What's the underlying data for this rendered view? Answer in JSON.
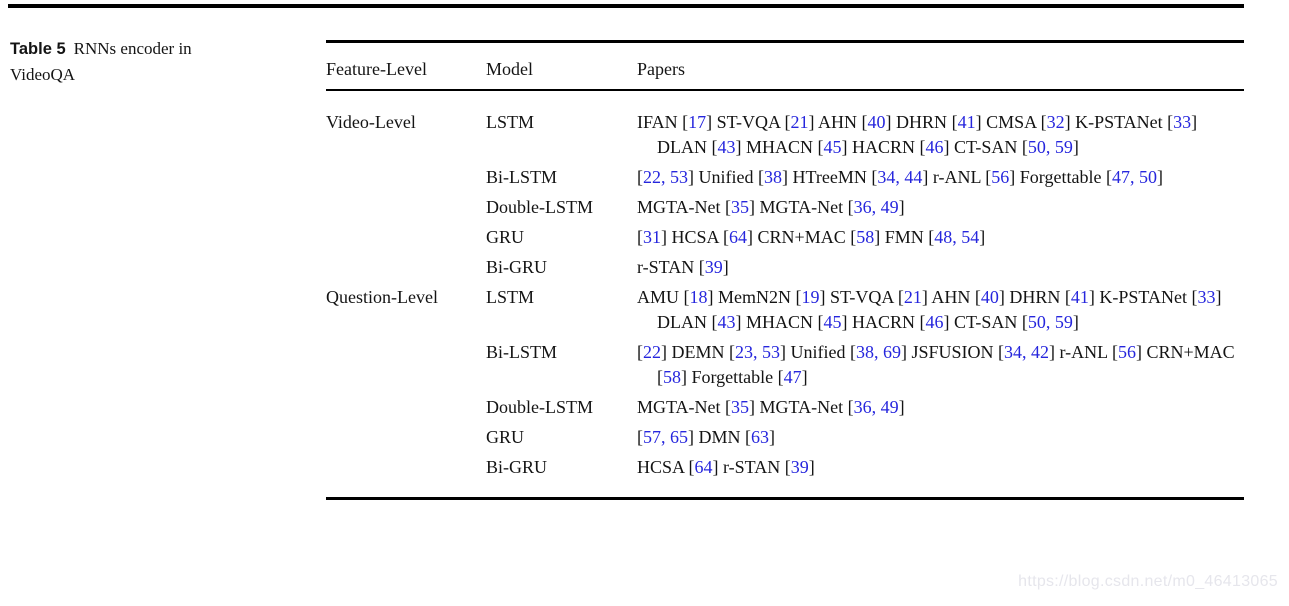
{
  "caption": {
    "label": "Table 5",
    "text": "RNNs encoder in VideoQA"
  },
  "table": {
    "headers": [
      "Feature-Level",
      "Model",
      "Papers"
    ],
    "rows": [
      {
        "feature_level": "Video-Level",
        "model": "LSTM",
        "papers": "IFAN [17] ST-VQA [21] AHN [40] DHRN [41] CMSA [32] K-PSTANet [33] DLAN [43] MHACN [45] HACRN [46] CT-SAN [50, 59]"
      },
      {
        "feature_level": "",
        "model": "Bi-LSTM",
        "papers": "[22, 53] Unified [38] HTreeMN [34, 44] r-ANL [56] Forgettable [47, 50]"
      },
      {
        "feature_level": "",
        "model": "Double-LSTM",
        "papers": "MGTA-Net [35] MGTA-Net [36, 49]"
      },
      {
        "feature_level": "",
        "model": "GRU",
        "papers": "[31] HCSA [64] CRN+MAC [58] FMN [48, 54]"
      },
      {
        "feature_level": "",
        "model": "Bi-GRU",
        "papers": "r-STAN [39]"
      },
      {
        "feature_level": "Question-Level",
        "model": "LSTM",
        "papers": "AMU [18] MemN2N [19] ST-VQA [21] AHN [40] DHRN [41] K-PSTANet [33] DLAN [43] MHACN [45] HACRN [46] CT-SAN [50, 59]"
      },
      {
        "feature_level": "",
        "model": "Bi-LSTM",
        "papers": "[22] DEMN [23, 53] Unified [38, 69] JSFUSION [34, 42] r-ANL [56] CRN+MAC [58] Forgettable [47]"
      },
      {
        "feature_level": "",
        "model": "Double-LSTM",
        "papers": "MGTA-Net [35] MGTA-Net [36, 49]"
      },
      {
        "feature_level": "",
        "model": "GRU",
        "papers": "[57, 65] DMN [63]"
      },
      {
        "feature_level": "",
        "model": "Bi-GRU",
        "papers": "HCSA [64] r-STAN [39]"
      }
    ]
  },
  "watermark": "https://blog.csdn.net/m0_46413065",
  "colors": {
    "citation_blue": "#2626dd",
    "text": "#141414",
    "rule": "#000000",
    "watermark_gray": "#e6e6ec"
  }
}
